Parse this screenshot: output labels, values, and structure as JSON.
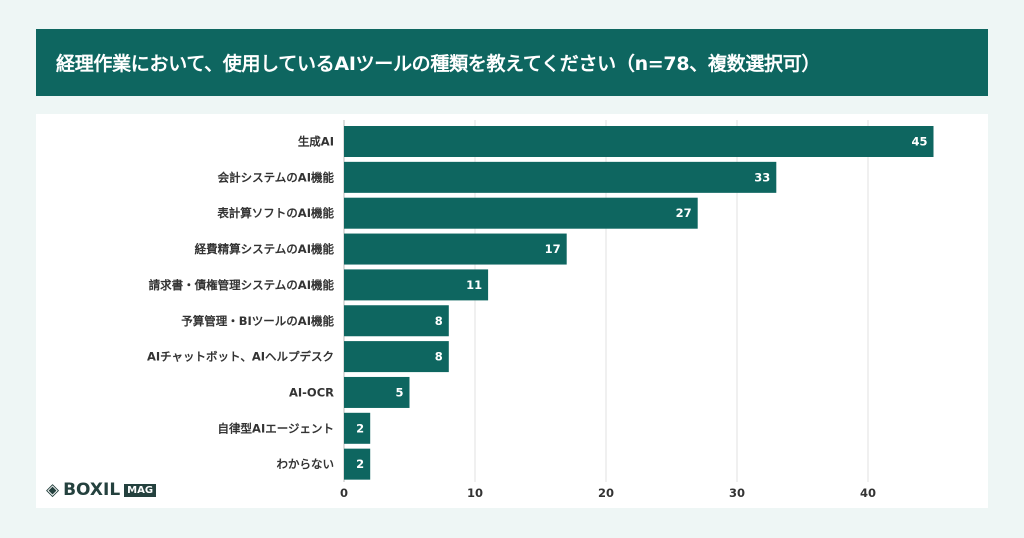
{
  "title": "経理作業において、使用しているAIツールの種類を教えてください（n=78、複数選択可）",
  "logo": {
    "brand": "BOXIL",
    "sub": "MAG"
  },
  "colors": {
    "bar": "#0e6660",
    "background": "#eef6f5"
  },
  "chart_data": {
    "type": "bar",
    "orientation": "horizontal",
    "categories": [
      "生成AI",
      "会計システムのAI機能",
      "表計算ソフトのAI機能",
      "経費精算システムのAI機能",
      "請求書・債権管理システムのAI機能",
      "予算管理・BIツールのAI機能",
      "AIチャットボット、AIヘルプデスク",
      "AI-OCR",
      "自律型AIエージェント",
      "わからない"
    ],
    "values": [
      45,
      33,
      27,
      17,
      11,
      8,
      8,
      5,
      2,
      2
    ],
    "xlim": [
      0,
      45
    ],
    "xticks": [
      0,
      10,
      20,
      30,
      40
    ],
    "grid": true
  }
}
